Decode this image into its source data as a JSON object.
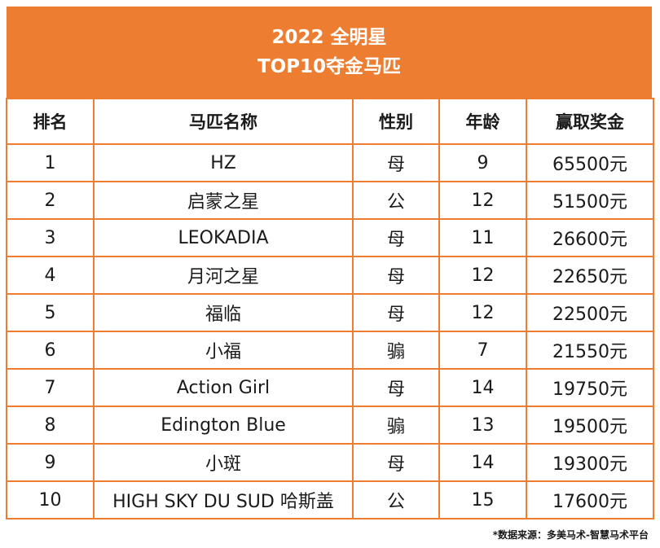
{
  "title": {
    "line1": "2022 全明星",
    "line2": "TOP10夺金马匹"
  },
  "headers": [
    "排名",
    "马匹名称",
    "性别",
    "年龄",
    "赢取奖金"
  ],
  "rows": [
    [
      "1",
      "HZ",
      "母",
      "9",
      "65500元"
    ],
    [
      "2",
      "启蒙之星",
      "公",
      "12",
      "51500元"
    ],
    [
      "3",
      "LEOKADIA",
      "母",
      "11",
      "26600元"
    ],
    [
      "4",
      "月河之星",
      "母",
      "12",
      "22650元"
    ],
    [
      "5",
      "福临",
      "母",
      "12",
      "22500元"
    ],
    [
      "6",
      "小福",
      "骟",
      "7",
      "21550元"
    ],
    [
      "7",
      "Action Girl",
      "母",
      "14",
      "19750元"
    ],
    [
      "8",
      "Edington Blue",
      "骟",
      "13",
      "19500元"
    ],
    [
      "9",
      "小斑",
      "母",
      "14",
      "19300元"
    ],
    [
      "10",
      "HIGH SKY DU SUD 哈斯盖",
      "公",
      "15",
      "17600元"
    ]
  ],
  "footer": "*数据来源：多美马术-智慧马术平台",
  "colors": {
    "accent": "#ed7d31"
  }
}
